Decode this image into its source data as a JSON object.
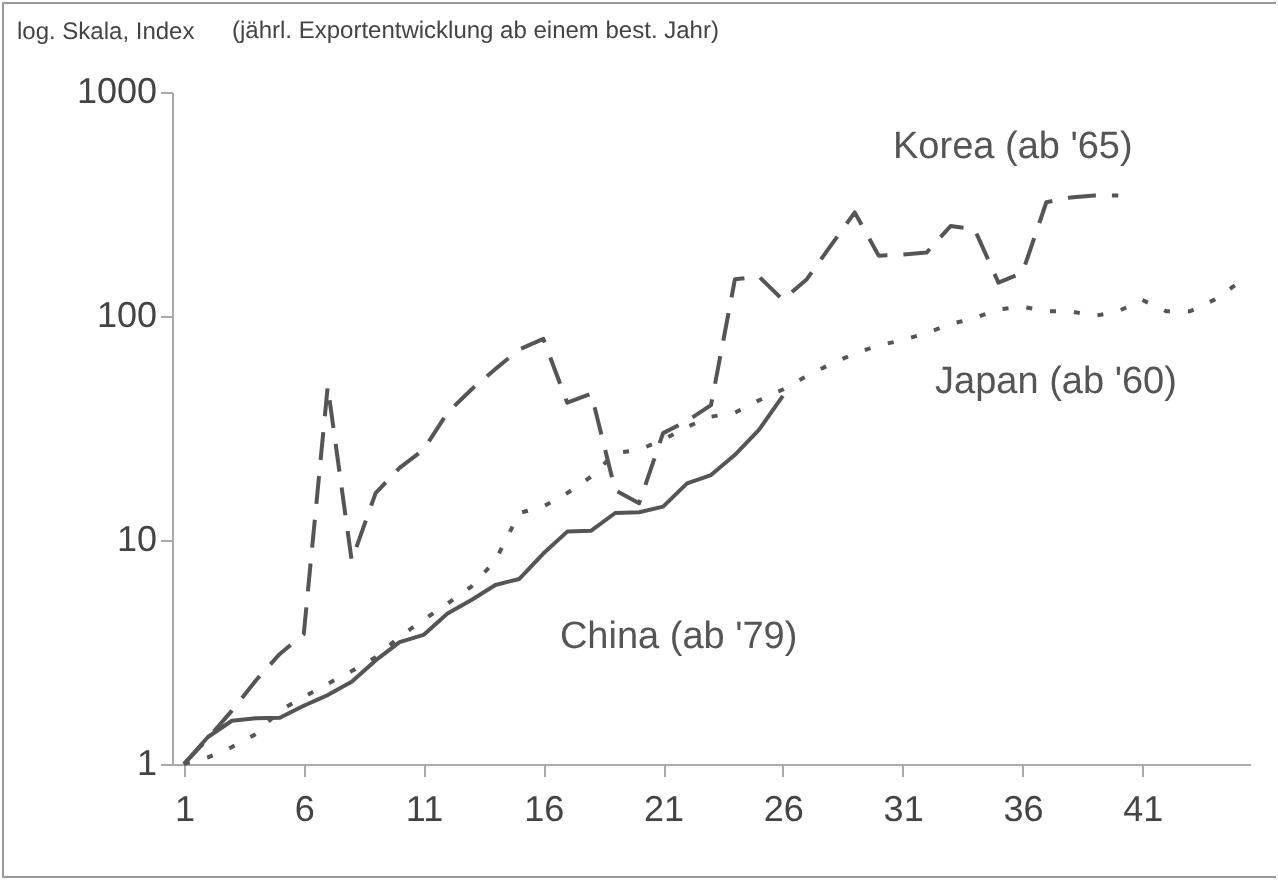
{
  "chart_data": {
    "type": "line",
    "title": "(jährl. Exportentwicklung ab einem best. Jahr)",
    "ylabel": "log. Skala, Index",
    "x": [
      1,
      2,
      3,
      4,
      5,
      6,
      7,
      8,
      9,
      10,
      11,
      12,
      13,
      14,
      15,
      16,
      17,
      18,
      19,
      20,
      21,
      22,
      23,
      24,
      25,
      26,
      27,
      28,
      29,
      30,
      31,
      32,
      33,
      34,
      35,
      36,
      37,
      38,
      39,
      40,
      41,
      42,
      43,
      44,
      45
    ],
    "series": [
      {
        "name": "China (ab '79)",
        "color": "#555555",
        "line_style": "solid",
        "values": [
          1,
          1.32,
          1.56,
          1.6,
          1.61,
          1.82,
          2.03,
          2.33,
          2.9,
          3.5,
          3.77,
          4.7,
          5.4,
          6.3,
          6.7,
          8.7,
          10.9,
          11,
          13.2,
          13.3,
          14.1,
          17.9,
          19.5,
          24,
          31,
          44,
          null,
          null,
          null,
          null,
          null,
          null,
          null,
          null,
          null,
          null,
          null,
          null,
          null,
          null,
          null,
          null,
          null,
          null,
          null
        ]
      },
      {
        "name": "Japan (ab '60)",
        "color": "#555555",
        "line_style": "dotted",
        "values": [
          1,
          1.07,
          1.19,
          1.36,
          1.73,
          1.99,
          2.28,
          2.6,
          3,
          3.7,
          4.4,
          5.2,
          6.2,
          8.1,
          13.2,
          14.1,
          16.2,
          19.2,
          24.4,
          25.3,
          28,
          32,
          35.5,
          37,
          42,
          47,
          54,
          61,
          68,
          74,
          78,
          84,
          92,
          98,
          107,
          110,
          105,
          105,
          100,
          105,
          118,
          105,
          105,
          118,
          140
        ]
      },
      {
        "name": "Korea (ab '65)",
        "color": "#555555",
        "line_style": "dashed",
        "values": [
          1,
          1.3,
          1.73,
          2.36,
          3.1,
          3.8,
          48.5,
          8.1,
          16.2,
          21,
          25.3,
          37,
          47,
          58,
          71,
          79,
          41,
          45,
          16.7,
          14.6,
          30,
          34,
          40,
          146,
          150,
          118,
          146,
          206,
          290,
          186,
          188,
          192,
          252,
          244,
          141,
          156,
          322,
          338,
          345,
          345,
          null,
          null,
          null,
          null,
          null
        ]
      }
    ],
    "xlim": [
      0.5,
      45.5
    ],
    "xticks": [
      1,
      6,
      11,
      16,
      21,
      26,
      31,
      36,
      41
    ],
    "ylim": [
      1,
      1000
    ],
    "yticks": [
      1,
      10,
      100,
      1000
    ],
    "log": "y",
    "grid": false
  }
}
